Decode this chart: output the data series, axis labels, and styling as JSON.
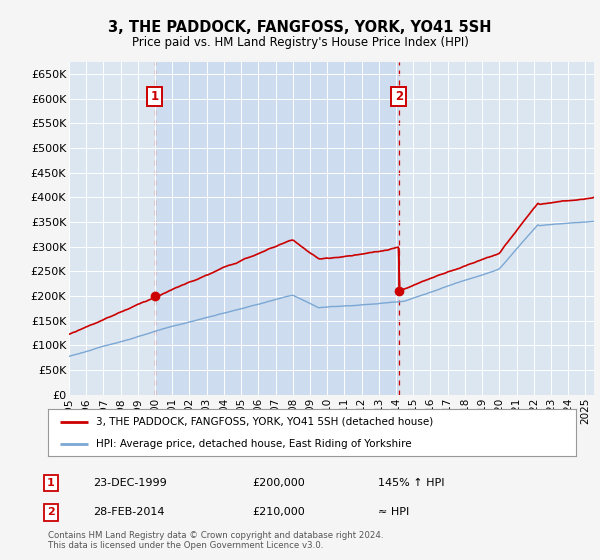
{
  "title": "3, THE PADDOCK, FANGFOSS, YORK, YO41 5SH",
  "subtitle": "Price paid vs. HM Land Registry's House Price Index (HPI)",
  "background_color": "#f5f5f5",
  "plot_bg_color": "#dce6f0",
  "ylim": [
    0,
    675000
  ],
  "yticks": [
    0,
    50000,
    100000,
    150000,
    200000,
    250000,
    300000,
    350000,
    400000,
    450000,
    500000,
    550000,
    600000,
    650000
  ],
  "ytick_labels": [
    "£0",
    "£50K",
    "£100K",
    "£150K",
    "£200K",
    "£250K",
    "£300K",
    "£350K",
    "£400K",
    "£450K",
    "£500K",
    "£550K",
    "£600K",
    "£650K"
  ],
  "sale1_year": 1999.97,
  "sale1_price": 200000,
  "sale2_year": 2014.16,
  "sale2_price": 210000,
  "hpi_line_color": "#7ba7d4",
  "price_line_color": "#cc0000",
  "vline_color": "#cc0000",
  "marker_color": "#cc0000",
  "legend_label_red": "3, THE PADDOCK, FANGFOSS, YORK, YO41 5SH (detached house)",
  "legend_label_blue": "HPI: Average price, detached house, East Riding of Yorkshire",
  "table_row1": [
    "1",
    "23-DEC-1999",
    "£200,000",
    "145% ↑ HPI"
  ],
  "table_row2": [
    "2",
    "28-FEB-2014",
    "£210,000",
    "≈ HPI"
  ],
  "footer": "Contains HM Land Registry data © Crown copyright and database right 2024.\nThis data is licensed under the Open Government Licence v3.0.",
  "xmin": 1995.0,
  "xmax": 2025.5
}
